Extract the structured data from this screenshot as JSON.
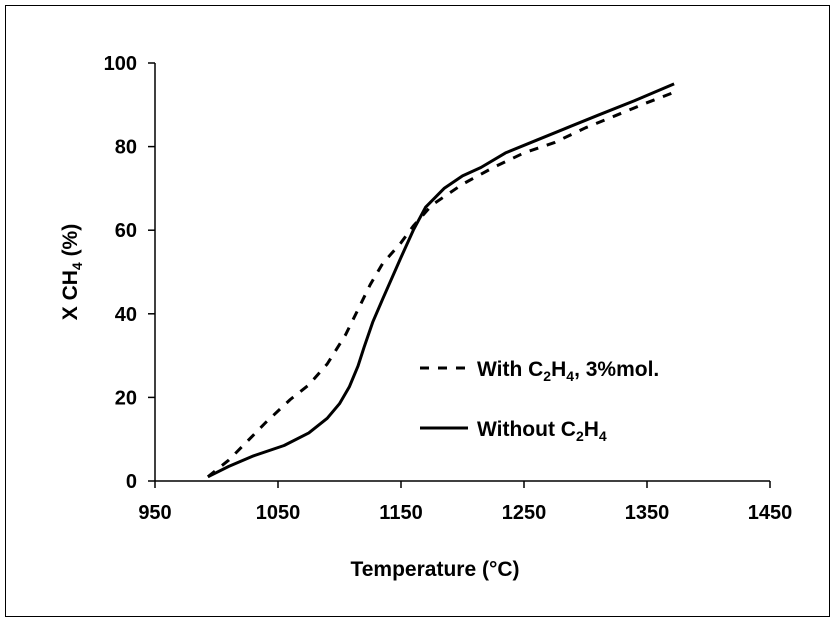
{
  "chart_data": {
    "type": "line",
    "title": "",
    "xlabel": "Temperature (°C)",
    "ylabel": {
      "prefix": "X CH",
      "sub": "4",
      "suffix": " (%)"
    },
    "xlim": [
      950,
      1450
    ],
    "ylim": [
      0,
      100
    ],
    "x_ticks": [
      950,
      1050,
      1150,
      1250,
      1350,
      1450
    ],
    "y_ticks": [
      0,
      20,
      40,
      60,
      80,
      100
    ],
    "grid": false,
    "legend_position": "right",
    "series": [
      {
        "name": "With C2H4, 3%mol.",
        "legend_parts": {
          "a": "With C",
          "s1": "2",
          "b": "H",
          "s2": "4",
          "c": ", 3%mol."
        },
        "style": "dashed",
        "color": "#000000",
        "points": [
          [
            993,
            1
          ],
          [
            1010,
            5
          ],
          [
            1025,
            9.5
          ],
          [
            1040,
            14
          ],
          [
            1060,
            19.5
          ],
          [
            1075,
            23
          ],
          [
            1090,
            28
          ],
          [
            1105,
            35
          ],
          [
            1115,
            41
          ],
          [
            1125,
            47
          ],
          [
            1135,
            52
          ],
          [
            1150,
            57
          ],
          [
            1160,
            61
          ],
          [
            1175,
            66
          ],
          [
            1200,
            71
          ],
          [
            1225,
            75
          ],
          [
            1250,
            78.5
          ],
          [
            1275,
            81
          ],
          [
            1300,
            84.5
          ],
          [
            1325,
            87.5
          ],
          [
            1350,
            90.5
          ],
          [
            1372,
            93
          ]
        ]
      },
      {
        "name": "Without C2H4",
        "legend_parts": {
          "a": "Without C",
          "s1": "2",
          "b": "H",
          "s2": "4",
          "c": ""
        },
        "style": "solid",
        "color": "#000000",
        "points": [
          [
            993,
            1
          ],
          [
            1010,
            3.5
          ],
          [
            1030,
            6
          ],
          [
            1055,
            8.5
          ],
          [
            1075,
            11.5
          ],
          [
            1090,
            15
          ],
          [
            1100,
            18.5
          ],
          [
            1108,
            22.5
          ],
          [
            1115,
            27.5
          ],
          [
            1120,
            32
          ],
          [
            1127,
            38
          ],
          [
            1135,
            43.5
          ],
          [
            1150,
            53.5
          ],
          [
            1160,
            60
          ],
          [
            1170,
            65.5
          ],
          [
            1185,
            70
          ],
          [
            1200,
            73
          ],
          [
            1215,
            75
          ],
          [
            1235,
            78.5
          ],
          [
            1260,
            81.5
          ],
          [
            1285,
            84.5
          ],
          [
            1310,
            87.5
          ],
          [
            1340,
            91
          ],
          [
            1372,
            95
          ]
        ]
      }
    ]
  }
}
